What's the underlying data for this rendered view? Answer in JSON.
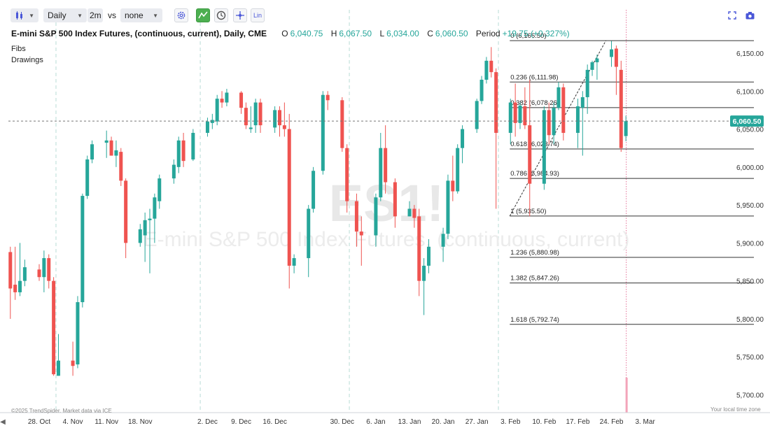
{
  "toolbar": {
    "interval": "Daily",
    "range": "2m",
    "vs_label": "vs",
    "compare": "none",
    "scale_label": "Lin"
  },
  "header": {
    "title": "E-mini S&P 500 Index Futures, (continuous, current), Daily, CME",
    "o_label": "O",
    "o_value": "6,040.75",
    "h_label": "H",
    "h_value": "6,067.50",
    "l_label": "L",
    "l_value": "6,034.00",
    "c_label": "C",
    "c_value": "6,060.50",
    "period_label": "Period",
    "period_value": "+19.75 (+0.327%)"
  },
  "panel": {
    "fibs": "Fibs",
    "drawings": "Drawings"
  },
  "watermark": {
    "symbol": "ES1!",
    "name": "E-mini S&P 500 Index Futures, (continuous, current)"
  },
  "footer": {
    "copyright": "©2025 TrendSpider. Market data via ICE",
    "timezone": "Your local time zone"
  },
  "colors": {
    "up": "#26a69a",
    "down": "#ef5350",
    "price_tag": "#26a69a"
  },
  "chart_data": {
    "type": "candlestick",
    "symbol": "ES1!",
    "y_ticks": [
      6150,
      6100,
      6050,
      6000,
      5950,
      5900,
      5850,
      5800,
      5750,
      5700
    ],
    "y_tick_labels": [
      "6,150.00",
      "6,100.00",
      "6,050.00",
      "6,000.00",
      "5,950.00",
      "5,900.00",
      "5,850.00",
      "5,800.00",
      "5,750.00",
      "5,700.00"
    ],
    "ylim": [
      5683,
      6180
    ],
    "last_price": 6060.5,
    "last_price_label": "6,060.50",
    "x_labels": [
      {
        "label": "28. Oct",
        "date": "2024-10-28"
      },
      {
        "label": "4. Nov",
        "date": "2024-11-04"
      },
      {
        "label": "11. Nov",
        "date": "2024-11-11"
      },
      {
        "label": "18. Nov",
        "date": "2024-11-18"
      },
      {
        "label": "2. Dec",
        "date": "2024-12-02"
      },
      {
        "label": "9. Dec",
        "date": "2024-12-09"
      },
      {
        "label": "16. Dec",
        "date": "2024-12-16"
      },
      {
        "label": "30. Dec",
        "date": "2024-12-30"
      },
      {
        "label": "6. Jan",
        "date": "2025-01-06"
      },
      {
        "label": "13. Jan",
        "date": "2025-01-13"
      },
      {
        "label": "20. Jan",
        "date": "2025-01-20"
      },
      {
        "label": "27. Jan",
        "date": "2025-01-27"
      },
      {
        "label": "3. Feb",
        "date": "2025-02-03"
      },
      {
        "label": "10. Feb",
        "date": "2025-02-10"
      },
      {
        "label": "17. Feb",
        "date": "2025-02-17"
      },
      {
        "label": "24. Feb",
        "date": "2025-02-24"
      },
      {
        "label": "3. Mar",
        "date": "2025-03-03"
      }
    ],
    "fib_levels": [
      {
        "ratio": "0",
        "price": 6166.5,
        "label": "0 (6,166.50)"
      },
      {
        "ratio": "0.236",
        "price": 6111.98,
        "label": "0.236 (6,111.98)"
      },
      {
        "ratio": "0.382",
        "price": 6078.26,
        "label": "0.382 (6,078.26)"
      },
      {
        "ratio": "0.618",
        "price": 6023.74,
        "label": "0.618 (6,023.74)"
      },
      {
        "ratio": "0.786",
        "price": 5984.93,
        "label": "0.786 (5,984.93)"
      },
      {
        "ratio": "1",
        "price": 5935.5,
        "label": "1 (5,935.50)"
      },
      {
        "ratio": "1.236",
        "price": 5880.98,
        "label": "1.236 (5,880.98)"
      },
      {
        "ratio": "1.382",
        "price": 5847.26,
        "label": "1.382 (5,847.26)"
      },
      {
        "ratio": "1.618",
        "price": 5792.74,
        "label": "1.618 (5,792.74)"
      }
    ],
    "candles": [
      {
        "date": "2024-10-22",
        "o": 5888,
        "h": 5895,
        "l": 5800,
        "c": 5840
      },
      {
        "date": "2024-10-23",
        "o": 5845,
        "h": 5895,
        "l": 5825,
        "c": 5835
      },
      {
        "date": "2024-10-24",
        "o": 5835,
        "h": 5900,
        "l": 5830,
        "c": 5850
      },
      {
        "date": "2024-10-25",
        "o": 5850,
        "h": 5878,
        "l": 5843,
        "c": 5868
      },
      {
        "date": "2024-10-28",
        "o": 5865,
        "h": 5872,
        "l": 5850,
        "c": 5855
      },
      {
        "date": "2024-10-29",
        "o": 5855,
        "h": 5890,
        "l": 5835,
        "c": 5880
      },
      {
        "date": "2024-10-30",
        "o": 5880,
        "h": 5885,
        "l": 5840,
        "c": 5850
      },
      {
        "date": "2024-10-31",
        "o": 5850,
        "h": 5855,
        "l": 5725,
        "c": 5727
      },
      {
        "date": "2024-11-01",
        "o": 5725,
        "h": 5780,
        "l": 5725,
        "c": 5745
      },
      {
        "date": "2024-11-04",
        "o": 5745,
        "h": 5770,
        "l": 5725,
        "c": 5738
      },
      {
        "date": "2024-11-05",
        "o": 5740,
        "h": 5830,
        "l": 5735,
        "c": 5822
      },
      {
        "date": "2024-11-06",
        "o": 5822,
        "h": 5965,
        "l": 5815,
        "c": 5962
      },
      {
        "date": "2024-11-07",
        "o": 5962,
        "h": 6015,
        "l": 5958,
        "c": 6010
      },
      {
        "date": "2024-11-08",
        "o": 6010,
        "h": 6035,
        "l": 6005,
        "c": 6030
      },
      {
        "date": "2024-11-11",
        "o": 6032,
        "h": 6048,
        "l": 6012,
        "c": 6035
      },
      {
        "date": "2024-11-12",
        "o": 6035,
        "h": 6040,
        "l": 6015,
        "c": 6015
      },
      {
        "date": "2024-11-13",
        "o": 6015,
        "h": 6035,
        "l": 6000,
        "c": 6022
      },
      {
        "date": "2024-11-14",
        "o": 6020,
        "h": 6025,
        "l": 5975,
        "c": 5982
      },
      {
        "date": "2024-11-15",
        "o": 5982,
        "h": 5985,
        "l": 5880,
        "c": 5900
      },
      {
        "date": "2024-11-18",
        "o": 5900,
        "h": 5925,
        "l": 5895,
        "c": 5918
      },
      {
        "date": "2024-11-19",
        "o": 5910,
        "h": 5940,
        "l": 5875,
        "c": 5930
      },
      {
        "date": "2024-11-20",
        "o": 5930,
        "h": 5945,
        "l": 5860,
        "c": 5932
      },
      {
        "date": "2024-11-21",
        "o": 5932,
        "h": 5965,
        "l": 5900,
        "c": 5960
      },
      {
        "date": "2024-11-22",
        "o": 5955,
        "h": 5990,
        "l": 5945,
        "c": 5985
      },
      {
        "date": "2024-11-25",
        "o": 5985,
        "h": 6010,
        "l": 5978,
        "c": 6003
      },
      {
        "date": "2024-11-26",
        "o": 6000,
        "h": 6040,
        "l": 5992,
        "c": 6035
      },
      {
        "date": "2024-11-27",
        "o": 6035,
        "h": 6045,
        "l": 6000,
        "c": 6008
      },
      {
        "date": "2024-11-29",
        "o": 6010,
        "h": 6050,
        "l": 6008,
        "c": 6045
      },
      {
        "date": "2024-12-02",
        "o": 6045,
        "h": 6065,
        "l": 6040,
        "c": 6060
      },
      {
        "date": "2024-12-03",
        "o": 6058,
        "h": 6070,
        "l": 6050,
        "c": 6062
      },
      {
        "date": "2024-12-04",
        "o": 6060,
        "h": 6095,
        "l": 6055,
        "c": 6090
      },
      {
        "date": "2024-12-05",
        "o": 6090,
        "h": 6100,
        "l": 6078,
        "c": 6085
      },
      {
        "date": "2024-12-06",
        "o": 6085,
        "h": 6103,
        "l": 6080,
        "c": 6098
      },
      {
        "date": "2024-12-09",
        "o": 6098,
        "h": 6100,
        "l": 6070,
        "c": 6078
      },
      {
        "date": "2024-12-10",
        "o": 6078,
        "h": 6085,
        "l": 6050,
        "c": 6055
      },
      {
        "date": "2024-12-11",
        "o": 6050,
        "h": 6080,
        "l": 6045,
        "c": 6052
      },
      {
        "date": "2024-12-12",
        "o": 6055,
        "h": 6090,
        "l": 6045,
        "c": 6085
      },
      {
        "date": "2024-12-13",
        "o": 6085,
        "h": 6090,
        "l": 6045,
        "c": 6055
      },
      {
        "date": "2024-12-16",
        "o": 6052,
        "h": 6080,
        "l": 6045,
        "c": 6075
      },
      {
        "date": "2024-12-17",
        "o": 6075,
        "h": 6080,
        "l": 6040,
        "c": 6055
      },
      {
        "date": "2024-12-18",
        "o": 6055,
        "h": 6085,
        "l": 6040,
        "c": 6050
      },
      {
        "date": "2024-12-19",
        "o": 6050,
        "h": 6070,
        "l": 5840,
        "c": 5870
      },
      {
        "date": "2024-12-20",
        "o": 5870,
        "h": 5885,
        "l": 5860,
        "c": 5880
      },
      {
        "date": "2024-12-23",
        "o": 5880,
        "h": 5950,
        "l": 5855,
        "c": 5945
      },
      {
        "date": "2024-12-24",
        "o": 5945,
        "h": 6000,
        "l": 5940,
        "c": 5995
      },
      {
        "date": "2024-12-26",
        "o": 5995,
        "h": 6100,
        "l": 5990,
        "c": 6095
      },
      {
        "date": "2024-12-27",
        "o": 6095,
        "h": 6100,
        "l": 6075,
        "c": 6088
      },
      {
        "date": "2024-12-30",
        "o": 6088,
        "h": 6092,
        "l": 6020,
        "c": 6025
      },
      {
        "date": "2024-12-31",
        "o": 6025,
        "h": 6030,
        "l": 5940,
        "c": 5955
      },
      {
        "date": "2025-01-02",
        "o": 5955,
        "h": 5965,
        "l": 5895,
        "c": 5915
      },
      {
        "date": "2025-01-03",
        "o": 5915,
        "h": 5935,
        "l": 5870,
        "c": 5910
      },
      {
        "date": "2025-01-06",
        "o": 5910,
        "h": 5965,
        "l": 5895,
        "c": 5960
      },
      {
        "date": "2025-01-07",
        "o": 5960,
        "h": 6045,
        "l": 5955,
        "c": 6025
      },
      {
        "date": "2025-01-08",
        "o": 6025,
        "h": 6055,
        "l": 5965,
        "c": 5980
      },
      {
        "date": "2025-01-10",
        "o": 5980,
        "h": 5985,
        "l": 5920,
        "c": 5935
      },
      {
        "date": "2025-01-13",
        "o": 5935,
        "h": 5955,
        "l": 5935,
        "c": 5945
      },
      {
        "date": "2025-01-14",
        "o": 5945,
        "h": 5950,
        "l": 5920,
        "c": 5933
      },
      {
        "date": "2025-01-15",
        "o": 5935,
        "h": 5945,
        "l": 5830,
        "c": 5850
      },
      {
        "date": "2025-01-16",
        "o": 5850,
        "h": 5880,
        "l": 5805,
        "c": 5870
      },
      {
        "date": "2025-01-17",
        "o": 5870,
        "h": 5905,
        "l": 5860,
        "c": 5895
      },
      {
        "date": "2025-01-20",
        "o": 5895,
        "h": 5920,
        "l": 5875,
        "c": 5912
      },
      {
        "date": "2025-01-21",
        "o": 5912,
        "h": 5990,
        "l": 5905,
        "c": 5982
      },
      {
        "date": "2025-01-22",
        "o": 5982,
        "h": 6015,
        "l": 5955,
        "c": 5968
      },
      {
        "date": "2025-01-23",
        "o": 5968,
        "h": 6030,
        "l": 5965,
        "c": 6025
      },
      {
        "date": "2025-01-24",
        "o": 6025,
        "h": 6055,
        "l": 6005,
        "c": 6050
      },
      {
        "date": "2025-01-27",
        "o": 6050,
        "h": 6090,
        "l": 6045,
        "c": 6087
      },
      {
        "date": "2025-01-28",
        "o": 6087,
        "h": 6120,
        "l": 6083,
        "c": 6115
      },
      {
        "date": "2025-01-29",
        "o": 6115,
        "h": 6145,
        "l": 6110,
        "c": 6140
      },
      {
        "date": "2025-01-30",
        "o": 6140,
        "h": 6158,
        "l": 6118,
        "c": 6125
      },
      {
        "date": "2025-01-31",
        "o": 6125,
        "h": 6130,
        "l": 5945,
        "c": 6045
      },
      {
        "date": "2025-02-03",
        "o": 6045,
        "h": 6090,
        "l": 6030,
        "c": 6085
      },
      {
        "date": "2025-02-04",
        "o": 6085,
        "h": 6110,
        "l": 6040,
        "c": 6058
      },
      {
        "date": "2025-02-05",
        "o": 6058,
        "h": 6085,
        "l": 6050,
        "c": 6081
      },
      {
        "date": "2025-02-06",
        "o": 6080,
        "h": 6105,
        "l": 6050,
        "c": 6055
      },
      {
        "date": "2025-02-07",
        "o": 6055,
        "h": 6115,
        "l": 5935,
        "c": 5978
      },
      {
        "date": "2025-02-10",
        "o": 5978,
        "h": 6080,
        "l": 5970,
        "c": 6075
      },
      {
        "date": "2025-02-11",
        "o": 6075,
        "h": 6085,
        "l": 6030,
        "c": 6042
      },
      {
        "date": "2025-02-12",
        "o": 6042,
        "h": 6085,
        "l": 6030,
        "c": 6078
      },
      {
        "date": "2025-02-13",
        "o": 6078,
        "h": 6112,
        "l": 6075,
        "c": 6105
      },
      {
        "date": "2025-02-14",
        "o": 6105,
        "h": 6110,
        "l": 6035,
        "c": 6045
      },
      {
        "date": "2025-02-17",
        "o": 6045,
        "h": 6090,
        "l": 6025,
        "c": 6080
      },
      {
        "date": "2025-02-18",
        "o": 6078,
        "h": 6100,
        "l": 6015,
        "c": 6092
      },
      {
        "date": "2025-02-19",
        "o": 6092,
        "h": 6135,
        "l": 6070,
        "c": 6128
      },
      {
        "date": "2025-02-20",
        "o": 6128,
        "h": 6140,
        "l": 6120,
        "c": 6138
      },
      {
        "date": "2025-02-21",
        "o": 6138,
        "h": 6148,
        "l": 6115,
        "c": 6143
      },
      {
        "date": "2025-02-24",
        "o": 6145,
        "h": 6166,
        "l": 6132,
        "c": 6155
      },
      {
        "date": "2025-02-25",
        "o": 6156,
        "h": 6160,
        "l": 6095,
        "c": 6132
      },
      {
        "date": "2025-02-26",
        "o": 6128,
        "h": 6140,
        "l": 6020,
        "c": 6025
      },
      {
        "date": "2025-02-27",
        "o": 6040.75,
        "h": 6067.5,
        "l": 6034,
        "c": 6060.5
      }
    ]
  }
}
